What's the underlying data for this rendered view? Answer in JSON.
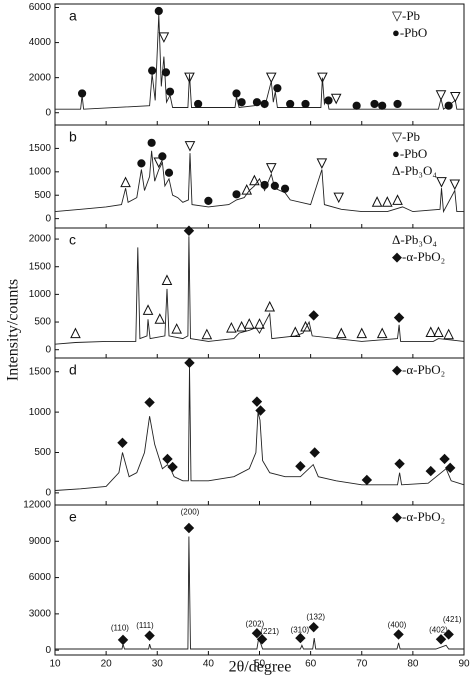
{
  "axis_labels": {
    "x": "2θ/degree",
    "y": "Intensity/counts"
  },
  "chart_data": [
    {
      "type": "line",
      "label": "a",
      "color": "#222",
      "xlim": [
        10,
        90
      ],
      "xticks": [
        10,
        20,
        30,
        40,
        50,
        60,
        70,
        80,
        90
      ],
      "xtick_labels": false,
      "ylim": [
        -700,
        6200
      ],
      "yticks": [
        0,
        2000,
        4000,
        6000
      ],
      "x": [
        10,
        15,
        15.3,
        15.6,
        28.5,
        29,
        29.6,
        30.3,
        30.8,
        31.3,
        31.8,
        32.5,
        33,
        36,
        36.3,
        36.7,
        45.2,
        45.5,
        46,
        49,
        50,
        51,
        52.3,
        52.7,
        53.1,
        53.5,
        62,
        62.3,
        62.7,
        63.2,
        63.6,
        85,
        85.5,
        86,
        88.3,
        88.6,
        90
      ],
      "values": [
        200,
        200,
        1000,
        200,
        400,
        2200,
        700,
        5600,
        1500,
        3200,
        600,
        1000,
        300,
        300,
        2200,
        300,
        300,
        900,
        300,
        400,
        600,
        300,
        1800,
        600,
        1200,
        300,
        300,
        2000,
        500,
        800,
        200,
        200,
        800,
        200,
        700,
        200,
        200
      ],
      "markers": [
        {
          "symbol": "circle",
          "x": 15.3,
          "y": 1100
        },
        {
          "symbol": "circle",
          "x": 29,
          "y": 2400
        },
        {
          "symbol": "circle",
          "x": 30.3,
          "y": 5800
        },
        {
          "symbol": "triangle-down",
          "x": 31.3,
          "y": 4300
        },
        {
          "symbol": "circle",
          "x": 31.7,
          "y": 2300
        },
        {
          "symbol": "circle",
          "x": 32.5,
          "y": 1200
        },
        {
          "symbol": "triangle-down",
          "x": 36.3,
          "y": 2000
        },
        {
          "symbol": "circle",
          "x": 38,
          "y": 500
        },
        {
          "symbol": "circle",
          "x": 45.5,
          "y": 1100
        },
        {
          "symbol": "circle",
          "x": 46.5,
          "y": 600
        },
        {
          "symbol": "circle",
          "x": 49.5,
          "y": 600
        },
        {
          "symbol": "circle",
          "x": 51,
          "y": 500
        },
        {
          "symbol": "triangle-down",
          "x": 52.3,
          "y": 2000
        },
        {
          "symbol": "circle",
          "x": 53.5,
          "y": 1400
        },
        {
          "symbol": "circle",
          "x": 56,
          "y": 500
        },
        {
          "symbol": "circle",
          "x": 59,
          "y": 500
        },
        {
          "symbol": "triangle-down",
          "x": 62.3,
          "y": 2000
        },
        {
          "symbol": "circle",
          "x": 63.5,
          "y": 700
        },
        {
          "symbol": "triangle-down",
          "x": 65,
          "y": 800
        },
        {
          "symbol": "circle",
          "x": 69,
          "y": 400
        },
        {
          "symbol": "circle",
          "x": 72.5,
          "y": 500
        },
        {
          "symbol": "circle",
          "x": 74,
          "y": 400
        },
        {
          "symbol": "circle",
          "x": 77,
          "y": 500
        },
        {
          "symbol": "triangle-down",
          "x": 85.5,
          "y": 1000
        },
        {
          "symbol": "circle",
          "x": 87,
          "y": 400
        },
        {
          "symbol": "triangle-down",
          "x": 88.3,
          "y": 900
        }
      ],
      "legend": [
        "▽-Pb",
        "●-PbO"
      ]
    },
    {
      "type": "line",
      "label": "b",
      "color": "#222",
      "xlim": [
        10,
        90
      ],
      "xticks": [
        10,
        20,
        30,
        40,
        50,
        60,
        70,
        80,
        90
      ],
      "xtick_labels": false,
      "ylim": [
        -200,
        2000
      ],
      "yticks": [
        0,
        500,
        1000,
        1500
      ],
      "x": [
        10,
        15,
        20,
        23,
        23.8,
        24.3,
        26,
        26.9,
        27.5,
        28.5,
        28.9,
        29.5,
        30.3,
        31,
        31.5,
        32.3,
        33,
        34,
        35,
        36.1,
        36.4,
        36.8,
        40,
        44,
        45.5,
        47,
        48,
        49,
        50,
        51,
        52.3,
        53,
        55,
        56,
        60,
        62.2,
        62.7,
        66,
        70,
        75,
        78,
        80,
        85.3,
        85.6,
        86,
        88.2,
        88.6,
        90
      ],
      "values": [
        150,
        200,
        250,
        300,
        650,
        350,
        450,
        1050,
        600,
        900,
        1450,
        800,
        1050,
        1200,
        700,
        850,
        500,
        450,
        350,
        400,
        1400,
        300,
        250,
        300,
        400,
        450,
        600,
        700,
        850,
        600,
        950,
        650,
        550,
        400,
        300,
        1050,
        300,
        200,
        150,
        150,
        250,
        150,
        200,
        650,
        150,
        600,
        150,
        150
      ],
      "markers": [
        {
          "symbol": "triangle-up",
          "x": 23.8,
          "y": 780
        },
        {
          "symbol": "circle",
          "x": 26.9,
          "y": 1180
        },
        {
          "symbol": "circle",
          "x": 28.9,
          "y": 1620
        },
        {
          "symbol": "triangle-down",
          "x": 30.3,
          "y": 1200
        },
        {
          "symbol": "circle",
          "x": 31,
          "y": 1330
        },
        {
          "symbol": "circle",
          "x": 32.3,
          "y": 980
        },
        {
          "symbol": "triangle-down",
          "x": 36.4,
          "y": 1550
        },
        {
          "symbol": "circle",
          "x": 40,
          "y": 380
        },
        {
          "symbol": "circle",
          "x": 45.5,
          "y": 520
        },
        {
          "symbol": "triangle-up",
          "x": 47.5,
          "y": 620
        },
        {
          "symbol": "triangle-up",
          "x": 49,
          "y": 820
        },
        {
          "symbol": "circle",
          "x": 51,
          "y": 720
        },
        {
          "symbol": "triangle-down",
          "x": 52.3,
          "y": 1080
        },
        {
          "symbol": "circle",
          "x": 53,
          "y": 700
        },
        {
          "symbol": "circle",
          "x": 55,
          "y": 640
        },
        {
          "symbol": "triangle-down",
          "x": 62.2,
          "y": 1180
        },
        {
          "symbol": "triangle-down",
          "x": 65.5,
          "y": 450
        },
        {
          "symbol": "triangle-up",
          "x": 73,
          "y": 360
        },
        {
          "symbol": "triangle-up",
          "x": 75,
          "y": 360
        },
        {
          "symbol": "triangle-up",
          "x": 77,
          "y": 400
        },
        {
          "symbol": "triangle-down",
          "x": 85.6,
          "y": 780
        },
        {
          "symbol": "triangle-down",
          "x": 88.2,
          "y": 730
        }
      ],
      "legend": [
        "▽-Pb",
        "●-PbO",
        "Δ-Pb₃O₄"
      ]
    },
    {
      "type": "line",
      "label": "c",
      "color": "#222",
      "xlim": [
        10,
        90
      ],
      "xticks": [
        10,
        20,
        30,
        40,
        50,
        60,
        70,
        80,
        90
      ],
      "xtick_labels": false,
      "ylim": [
        -150,
        2200
      ],
      "yticks": [
        0,
        500,
        1000,
        1500,
        2000
      ],
      "x": [
        10,
        14,
        20,
        25.8,
        26.2,
        26.6,
        28,
        28.2,
        28.6,
        31.5,
        31.9,
        32.3,
        35,
        36,
        36.2,
        36.5,
        40,
        45,
        46,
        48,
        49.3,
        50,
        52,
        52.4,
        57,
        58.5,
        59.7,
        60.3,
        70,
        77,
        77.3,
        77.6,
        84,
        85,
        90
      ],
      "values": [
        100,
        130,
        150,
        150,
        1850,
        200,
        250,
        550,
        200,
        250,
        1100,
        250,
        200,
        250,
        2050,
        200,
        150,
        200,
        300,
        350,
        400,
        300,
        650,
        200,
        250,
        300,
        500,
        250,
        150,
        200,
        450,
        150,
        150,
        200,
        150
      ],
      "markers": [
        {
          "symbol": "triangle-up",
          "x": 14,
          "y": 300
        },
        {
          "symbol": "triangle-up",
          "x": 28.2,
          "y": 720
        },
        {
          "symbol": "triangle-up",
          "x": 30.5,
          "y": 560
        },
        {
          "symbol": "triangle-up",
          "x": 31.9,
          "y": 1260
        },
        {
          "symbol": "triangle-up",
          "x": 33.8,
          "y": 380
        },
        {
          "symbol": "diamond",
          "x": 36.2,
          "y": 2150
        },
        {
          "symbol": "triangle-up",
          "x": 39.7,
          "y": 280
        },
        {
          "symbol": "triangle-up",
          "x": 44.5,
          "y": 400
        },
        {
          "symbol": "triangle-up",
          "x": 46.5,
          "y": 420
        },
        {
          "symbol": "triangle-up",
          "x": 48,
          "y": 470
        },
        {
          "symbol": "triangle-up",
          "x": 50,
          "y": 470
        },
        {
          "symbol": "triangle-up",
          "x": 52,
          "y": 780
        },
        {
          "symbol": "triangle-up",
          "x": 57,
          "y": 320
        },
        {
          "symbol": "triangle-up",
          "x": 59,
          "y": 420
        },
        {
          "symbol": "diamond",
          "x": 60.6,
          "y": 620
        },
        {
          "symbol": "triangle-up",
          "x": 66,
          "y": 300
        },
        {
          "symbol": "triangle-up",
          "x": 70,
          "y": 300
        },
        {
          "symbol": "triangle-up",
          "x": 74,
          "y": 300
        },
        {
          "symbol": "diamond",
          "x": 77.3,
          "y": 580
        },
        {
          "symbol": "triangle-up",
          "x": 83.5,
          "y": 320
        },
        {
          "symbol": "triangle-up",
          "x": 85,
          "y": 320
        },
        {
          "symbol": "triangle-up",
          "x": 87,
          "y": 280
        }
      ],
      "legend": [
        "Δ-Pb₃O₄",
        "◆-α-PbO₂"
      ]
    },
    {
      "type": "line",
      "label": "d",
      "color": "#222",
      "xlim": [
        10,
        90
      ],
      "xticks": [
        10,
        20,
        30,
        40,
        50,
        60,
        70,
        80,
        90
      ],
      "xtick_labels": false,
      "ylim": [
        -150,
        1670
      ],
      "yticks": [
        0,
        500,
        1000,
        1500
      ],
      "x": [
        10,
        15,
        20,
        22.5,
        23.2,
        24.5,
        26,
        27.5,
        28.5,
        29.5,
        31,
        32,
        32.6,
        33.3,
        35,
        36.1,
        36.3,
        36.6,
        40,
        45,
        48,
        49.3,
        49.7,
        50.1,
        50.6,
        52,
        55,
        58,
        60.5,
        61.5,
        65,
        70,
        77,
        77.4,
        77.8,
        83,
        86.5,
        87.5,
        90
      ],
      "values": [
        30,
        50,
        80,
        250,
        500,
        200,
        250,
        500,
        950,
        600,
        300,
        350,
        300,
        200,
        150,
        150,
        1560,
        150,
        150,
        200,
        300,
        500,
        1000,
        900,
        400,
        250,
        200,
        200,
        350,
        200,
        150,
        100,
        100,
        250,
        100,
        120,
        300,
        150,
        100
      ],
      "markers": [
        {
          "symbol": "diamond",
          "x": 23.2,
          "y": 620
        },
        {
          "symbol": "diamond",
          "x": 28.5,
          "y": 1120
        },
        {
          "symbol": "diamond",
          "x": 32,
          "y": 420
        },
        {
          "symbol": "diamond",
          "x": 33,
          "y": 320
        },
        {
          "symbol": "diamond",
          "x": 36.3,
          "y": 1610
        },
        {
          "symbol": "diamond",
          "x": 49.5,
          "y": 1130
        },
        {
          "symbol": "diamond",
          "x": 50.2,
          "y": 1020
        },
        {
          "symbol": "diamond",
          "x": 58,
          "y": 330
        },
        {
          "symbol": "diamond",
          "x": 60.8,
          "y": 500
        },
        {
          "symbol": "diamond",
          "x": 71,
          "y": 160
        },
        {
          "symbol": "diamond",
          "x": 77.4,
          "y": 360
        },
        {
          "symbol": "diamond",
          "x": 83.5,
          "y": 270
        },
        {
          "symbol": "diamond",
          "x": 86.2,
          "y": 420
        },
        {
          "symbol": "diamond",
          "x": 87.3,
          "y": 310
        }
      ],
      "legend": [
        "◆-α-PbO₂"
      ]
    },
    {
      "type": "line",
      "label": "e",
      "color": "#222",
      "xlim": [
        10,
        90
      ],
      "xticks": [
        10,
        20,
        30,
        40,
        50,
        60,
        70,
        80,
        90
      ],
      "xtick_labels": true,
      "ylim": [
        -400,
        12000
      ],
      "yticks": [
        0,
        3000,
        6000,
        9000,
        12000
      ],
      "x": [
        10,
        23.1,
        23.3,
        23.6,
        28.3,
        28.5,
        28.8,
        36,
        36.2,
        36.5,
        49.5,
        49.8,
        50.2,
        50.6,
        58,
        58.3,
        58.6,
        60.4,
        60.7,
        61,
        76.9,
        77.2,
        77.5,
        84.5,
        86.5,
        87,
        90
      ],
      "values": [
        100,
        100,
        500,
        100,
        100,
        500,
        100,
        100,
        9400,
        100,
        100,
        900,
        600,
        100,
        100,
        400,
        100,
        100,
        1000,
        100,
        100,
        600,
        100,
        100,
        400,
        100,
        100
      ],
      "markers": [
        {
          "symbol": "diamond",
          "x": 23.3,
          "y": 850
        },
        {
          "symbol": "diamond",
          "x": 28.5,
          "y": 1200
        },
        {
          "symbol": "diamond",
          "x": 36.2,
          "y": 10100
        },
        {
          "symbol": "diamond",
          "x": 49.5,
          "y": 1400
        },
        {
          "symbol": "diamond",
          "x": 50.5,
          "y": 900
        },
        {
          "symbol": "diamond",
          "x": 58,
          "y": 1000
        },
        {
          "symbol": "diamond",
          "x": 60.6,
          "y": 1900
        },
        {
          "symbol": "diamond",
          "x": 77.2,
          "y": 1300
        },
        {
          "symbol": "diamond",
          "x": 85.5,
          "y": 900
        },
        {
          "symbol": "diamond",
          "x": 87,
          "y": 1300
        }
      ],
      "annotations": [
        {
          "text": "(110)",
          "x": 22.7,
          "y": 1800
        },
        {
          "text": "(111)",
          "x": 27.6,
          "y": 2000
        },
        {
          "text": "(200)",
          "x": 36.4,
          "y": 11400
        },
        {
          "text": "(202)",
          "x": 49.1,
          "y": 2150
        },
        {
          "text": "(221)",
          "x": 52,
          "y": 1500
        },
        {
          "text": "(310)",
          "x": 57.9,
          "y": 1650
        },
        {
          "text": "(132)",
          "x": 61,
          "y": 2700
        },
        {
          "text": "(400)",
          "x": 76.9,
          "y": 2050
        },
        {
          "text": "(402)",
          "x": 85,
          "y": 1650
        },
        {
          "text": "(421)",
          "x": 87.7,
          "y": 2500
        }
      ],
      "legend": [
        "◆-α-PbO₂"
      ]
    }
  ]
}
